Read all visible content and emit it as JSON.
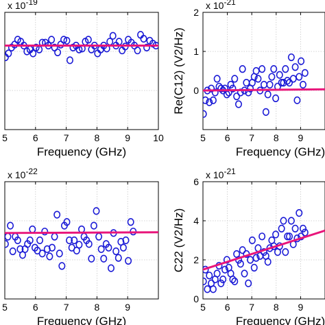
{
  "colors": {
    "marker": "#1a1ad6",
    "fit_line": "#e8157a",
    "grid": "#c8c8c8",
    "axis": "#000000"
  },
  "chart_data": [
    {
      "id": "top-left",
      "type": "scatter",
      "xlabel": "Frequency (GHz)",
      "ylabel": "",
      "exponent_label": "x 10",
      "exponent_power": "-19",
      "xlim": [
        5,
        10
      ],
      "ylim": [
        -4,
        2
      ],
      "xticks": [
        "5",
        "6",
        "7",
        "8",
        "9",
        "10"
      ],
      "yticks": [],
      "grid": true,
      "fit": {
        "x": [
          5,
          10
        ],
        "y": [
          0.3,
          0.3
        ]
      },
      "series": [
        {
          "x": [
            5.02,
            5.12,
            5.22,
            5.32,
            5.42,
            5.52,
            5.62,
            5.72,
            5.82,
            5.92,
            6.02,
            6.12,
            6.22,
            6.32,
            6.42,
            6.52,
            6.62,
            6.72,
            6.82,
            6.92,
            7.02,
            7.12,
            7.22,
            7.32,
            7.42,
            7.52,
            7.62,
            7.72,
            7.82,
            7.92,
            8.02,
            8.12,
            8.22,
            8.32,
            8.42,
            8.52,
            8.62,
            8.72,
            8.82,
            8.92,
            9.02,
            9.12,
            9.22,
            9.32,
            9.42,
            9.52,
            9.62,
            9.72,
            9.82,
            9.92
          ],
          "y": [
            -0.3,
            -0.1,
            0.2,
            0.35,
            0.6,
            0.5,
            0.3,
            0.0,
            0.1,
            -0.1,
            0.2,
            0.1,
            0.45,
            0.45,
            0.3,
            0.6,
            0.2,
            -0.05,
            0.35,
            0.6,
            0.55,
            -0.45,
            0.2,
            0.3,
            0.1,
            0.15,
            0.5,
            0.6,
            0.1,
            0.3,
            -0.1,
            0.1,
            0.3,
            0.15,
            0.5,
            0.8,
            0.3,
            0.5,
            0.05,
            0.25,
            0.6,
            0.45,
            0.3,
            0.05,
            0.85,
            0.65,
            0.2,
            0.55,
            0.4,
            0.3
          ]
        }
      ]
    },
    {
      "id": "top-right",
      "type": "scatter",
      "xlabel": "Frequency (GHz)",
      "ylabel": "Re(C12) (V2/Hz)",
      "exponent_label": "x 10",
      "exponent_power": "-21",
      "xlim": [
        5,
        10
      ],
      "ylim": [
        -1,
        2
      ],
      "xticks": [
        "5",
        "6",
        "7",
        "8",
        "9"
      ],
      "yticks": [
        "2",
        "1",
        "0"
      ],
      "grid": true,
      "fit": {
        "x": [
          5,
          10
        ],
        "y": [
          0.0,
          0.03
        ]
      },
      "series": [
        {
          "x": [
            5.02,
            5.1,
            5.18,
            5.26,
            5.34,
            5.42,
            5.5,
            5.58,
            5.66,
            5.74,
            5.82,
            5.9,
            5.98,
            6.06,
            6.14,
            6.22,
            6.3,
            6.38,
            6.46,
            6.54,
            6.62,
            6.7,
            6.78,
            6.86,
            6.94,
            7.02,
            7.1,
            7.18,
            7.26,
            7.34,
            7.42,
            7.5,
            7.58,
            7.66,
            7.74,
            7.82,
            7.9,
            7.98,
            8.06,
            8.14,
            8.22,
            8.3,
            8.38,
            8.46,
            8.54,
            8.62,
            8.7,
            8.78,
            8.86,
            8.94,
            9.02,
            9.1,
            9.18
          ],
          "y": [
            -0.6,
            -0.25,
            0.0,
            -0.3,
            0.05,
            -0.25,
            -0.05,
            0.3,
            0.1,
            0.05,
            0.0,
            0.05,
            -0.1,
            -0.05,
            0.15,
            0.05,
            0.3,
            -0.15,
            -0.35,
            -0.05,
            0.55,
            0.0,
            0.2,
            -0.05,
            0.05,
            0.2,
            0.35,
            0.5,
            0.3,
            0.0,
            0.55,
            0.15,
            -0.55,
            -0.1,
            0.15,
            0.35,
            0.55,
            -0.2,
            0.1,
            0.4,
            0.2,
            0.2,
            0.55,
            0.25,
            0.2,
            0.85,
            0.3,
            0.6,
            -0.25,
            0.35,
            0.75,
            0.15,
            0.45
          ]
        }
      ]
    },
    {
      "id": "bottom-left",
      "type": "scatter",
      "xlabel": "Frequency (GHz)",
      "ylabel": "",
      "exponent_label": "x 10",
      "exponent_power": "-22",
      "xlim": [
        5,
        10
      ],
      "ylim": [
        -5,
        11
      ],
      "xticks": [
        "5",
        "6",
        "7",
        "8",
        "9"
      ],
      "yticks": [],
      "grid": true,
      "fit": {
        "x": [
          5,
          10
        ],
        "y": [
          4.0,
          4.1
        ]
      },
      "series": [
        {
          "x": [
            5.02,
            5.1,
            5.18,
            5.26,
            5.34,
            5.42,
            5.5,
            5.58,
            5.66,
            5.74,
            5.82,
            5.9,
            5.98,
            6.06,
            6.14,
            6.22,
            6.3,
            6.38,
            6.46,
            6.54,
            6.62,
            6.7,
            6.78,
            6.86,
            6.94,
            7.02,
            7.1,
            7.18,
            7.26,
            7.34,
            7.42,
            7.5,
            7.58,
            7.66,
            7.74,
            7.82,
            7.9,
            7.98,
            8.06,
            8.14,
            8.22,
            8.3,
            8.38,
            8.46,
            8.54,
            8.62,
            8.7,
            8.78,
            8.86,
            8.94,
            9.02,
            9.1,
            9.18
          ],
          "y": [
            2.5,
            3.5,
            5.0,
            1.5,
            3.5,
            3.0,
            1.8,
            1.0,
            1.8,
            2.5,
            3.0,
            4.5,
            2.0,
            1.6,
            3.0,
            1.2,
            4.2,
            1.8,
            0.8,
            2.0,
            3.5,
            6.5,
            1.2,
            -0.5,
            5.0,
            5.5,
            3.0,
            2.0,
            3.0,
            1.6,
            2.4,
            4.5,
            3.5,
            3.0,
            2.5,
            0.5,
            5.0,
            7.0,
            3.5,
            1.8,
            0.5,
            2.5,
            2.0,
            -0.8,
            4.0,
            1.5,
            0.6,
            2.8,
            2.0,
            3.0,
            0.2,
            5.5,
            4.2
          ]
        }
      ]
    },
    {
      "id": "bottom-right",
      "type": "scatter",
      "xlabel": "Frequency (GHz)",
      "ylabel": "C22 (V2/Hz)",
      "exponent_label": "x 10",
      "exponent_power": "-21",
      "xlim": [
        5,
        10
      ],
      "ylim": [
        0,
        6
      ],
      "xticks": [
        "5",
        "6",
        "7",
        "8",
        "9"
      ],
      "yticks": [
        "6",
        "4",
        "2",
        "0"
      ],
      "grid": true,
      "fit": {
        "x": [
          5,
          10
        ],
        "y": [
          1.5,
          3.5
        ]
      },
      "series": [
        {
          "x": [
            5.02,
            5.1,
            5.18,
            5.26,
            5.34,
            5.42,
            5.5,
            5.58,
            5.66,
            5.74,
            5.82,
            5.9,
            5.98,
            6.06,
            6.14,
            6.22,
            6.3,
            6.38,
            6.46,
            6.54,
            6.62,
            6.7,
            6.78,
            6.86,
            6.94,
            7.02,
            7.1,
            7.18,
            7.26,
            7.34,
            7.42,
            7.5,
            7.58,
            7.66,
            7.74,
            7.82,
            7.9,
            7.98,
            8.06,
            8.14,
            8.22,
            8.3,
            8.38,
            8.46,
            8.54,
            8.62,
            8.7,
            8.78,
            8.86,
            8.94,
            9.02,
            9.1,
            9.18
          ],
          "y": [
            0.9,
            1.5,
            0.5,
            1.2,
            0.8,
            0.5,
            1.0,
            1.3,
            1.7,
            0.8,
            1.0,
            1.5,
            2.0,
            1.6,
            1.3,
            1.0,
            0.9,
            2.3,
            2.0,
            1.8,
            2.5,
            1.3,
            2.3,
            0.8,
            2.0,
            3.0,
            1.6,
            2.1,
            2.6,
            2.2,
            3.2,
            2.4,
            2.2,
            1.9,
            2.6,
            3.0,
            2.7,
            3.3,
            2.4,
            2.7,
            3.6,
            4.0,
            2.4,
            3.2,
            3.2,
            4.0,
            2.8,
            3.6,
            3.1,
            4.4,
            3.2,
            3.6,
            3.4
          ]
        }
      ]
    }
  ]
}
